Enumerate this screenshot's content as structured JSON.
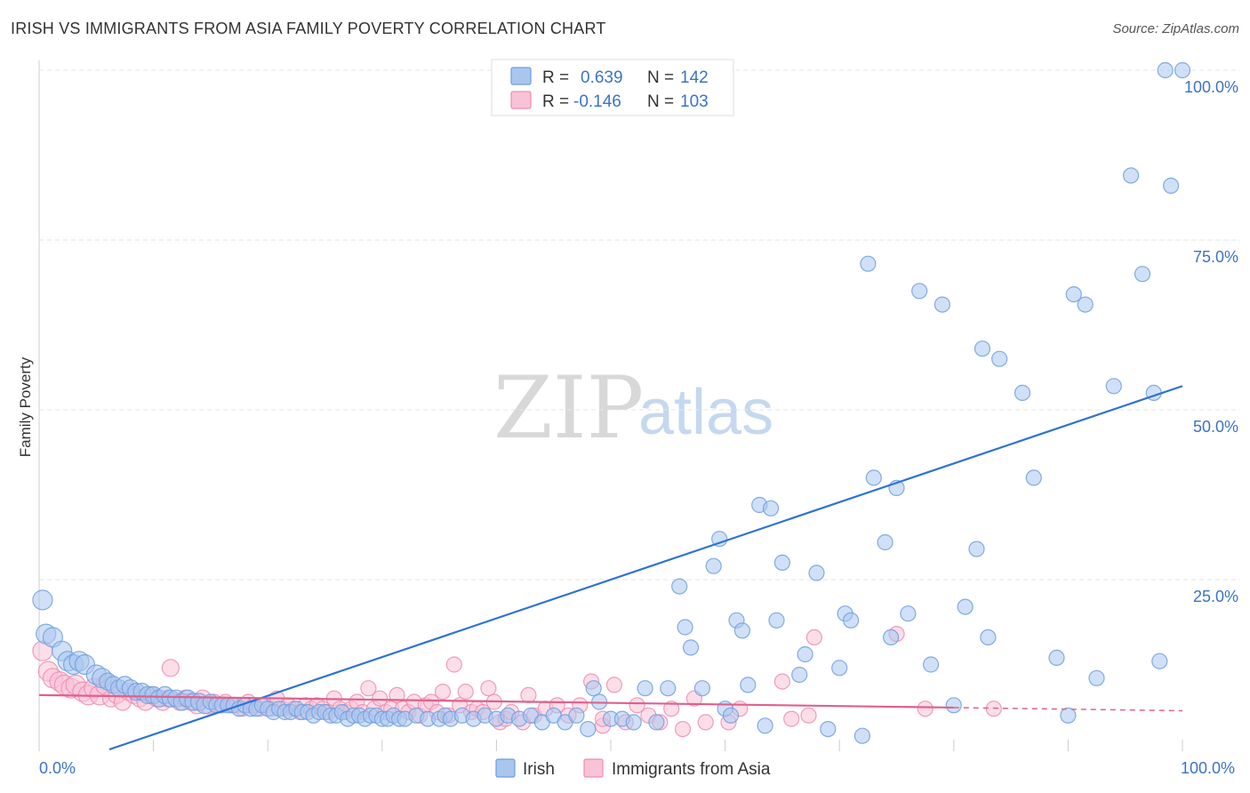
{
  "title": "IRISH VS IMMIGRANTS FROM ASIA FAMILY POVERTY CORRELATION CHART",
  "source": "Source: ZipAtlas.com",
  "watermark": {
    "zip": "ZIP",
    "atlas": "atlas"
  },
  "colors": {
    "irish": "#6f9fe0",
    "irish_fill": "#a9c6ef",
    "irish_line": "#2d72d6",
    "asia": "#f08cb0",
    "asia_fill": "#f8c3d6",
    "asia_line": "#e0608e",
    "grid": "#e6e6e6",
    "tick_text": "#3b73c7"
  },
  "legend_top": {
    "rows": [
      {
        "r_label": "R =",
        "r_value": "0.639",
        "n_label": "N =",
        "n_value": "142"
      },
      {
        "r_label": "R =",
        "r_value": "-0.146",
        "n_label": "N =",
        "n_value": "103"
      }
    ]
  },
  "chart_data": {
    "type": "scatter",
    "title": "IRISH VS IMMIGRANTS FROM ASIA FAMILY POVERTY CORRELATION CHART",
    "xlabel": "",
    "ylabel": "Family Poverty",
    "xlim": [
      0,
      100
    ],
    "ylim": [
      0,
      100
    ],
    "x_tick_labels": [
      "0.0%",
      "100.0%"
    ],
    "y_tick_labels": [
      "25.0%",
      "50.0%",
      "75.0%",
      "100.0%"
    ],
    "y_ticks": [
      25,
      50,
      75,
      100
    ],
    "grid": true,
    "legend_position": "bottom-center",
    "series": [
      {
        "name": "Irish",
        "r": 0.639,
        "n": 142,
        "trend": {
          "x0": 0,
          "y0": -3.5,
          "x1": 100,
          "y1": 53.5
        },
        "points": [
          [
            0.3,
            22
          ],
          [
            0.6,
            17
          ],
          [
            1.2,
            16.5
          ],
          [
            2.0,
            14.5
          ],
          [
            2.5,
            13
          ],
          [
            3.0,
            12.5
          ],
          [
            3.5,
            13
          ],
          [
            4.0,
            12.5
          ],
          [
            5.0,
            11
          ],
          [
            5.5,
            10.5
          ],
          [
            6.0,
            10
          ],
          [
            6.5,
            9.5
          ],
          [
            7.0,
            9
          ],
          [
            7.5,
            9.5
          ],
          [
            8.0,
            9
          ],
          [
            8.5,
            8.5
          ],
          [
            9.0,
            8.5
          ],
          [
            9.5,
            8
          ],
          [
            10.0,
            8
          ],
          [
            10.5,
            7.5
          ],
          [
            11.0,
            8
          ],
          [
            11.5,
            7.5
          ],
          [
            12.0,
            7.5
          ],
          [
            12.5,
            7
          ],
          [
            13.0,
            7.5
          ],
          [
            13.5,
            7
          ],
          [
            14.0,
            7
          ],
          [
            14.5,
            6.5
          ],
          [
            15.0,
            7
          ],
          [
            15.5,
            6.5
          ],
          [
            16.0,
            6.5
          ],
          [
            16.5,
            6.5
          ],
          [
            17.0,
            6.5
          ],
          [
            17.5,
            6
          ],
          [
            18.0,
            6.5
          ],
          [
            18.5,
            6
          ],
          [
            19.0,
            6
          ],
          [
            19.5,
            6.5
          ],
          [
            20.0,
            6
          ],
          [
            20.5,
            5.5
          ],
          [
            21.0,
            6
          ],
          [
            21.5,
            5.5
          ],
          [
            22.0,
            5.5
          ],
          [
            22.5,
            6
          ],
          [
            23.0,
            5.5
          ],
          [
            23.5,
            5.5
          ],
          [
            24.0,
            5
          ],
          [
            24.5,
            5.5
          ],
          [
            25.0,
            5.5
          ],
          [
            25.5,
            5
          ],
          [
            26.0,
            5
          ],
          [
            26.5,
            5.5
          ],
          [
            27.0,
            4.5
          ],
          [
            27.5,
            5
          ],
          [
            28.0,
            5
          ],
          [
            28.5,
            4.5
          ],
          [
            29.0,
            5
          ],
          [
            29.5,
            5
          ],
          [
            30.0,
            4.5
          ],
          [
            30.5,
            4.5
          ],
          [
            31.0,
            5
          ],
          [
            31.5,
            4.5
          ],
          [
            32.0,
            4.5
          ],
          [
            33.0,
            5
          ],
          [
            34.0,
            4.5
          ],
          [
            35.0,
            4.5
          ],
          [
            35.5,
            5
          ],
          [
            36.0,
            4.5
          ],
          [
            37.0,
            5
          ],
          [
            38.0,
            4.5
          ],
          [
            39.0,
            5
          ],
          [
            40.0,
            4.5
          ],
          [
            41.0,
            5
          ],
          [
            42.0,
            4.5
          ],
          [
            43.0,
            5
          ],
          [
            44.0,
            4
          ],
          [
            45.0,
            5
          ],
          [
            46.0,
            4
          ],
          [
            47.0,
            5
          ],
          [
            48.0,
            3
          ],
          [
            48.5,
            9
          ],
          [
            49.0,
            7
          ],
          [
            50.0,
            4.5
          ],
          [
            51.0,
            4.5
          ],
          [
            52.0,
            4
          ],
          [
            53.0,
            9
          ],
          [
            54.0,
            4
          ],
          [
            55.0,
            9
          ],
          [
            56.0,
            24
          ],
          [
            56.5,
            18
          ],
          [
            57.0,
            15
          ],
          [
            58.0,
            9
          ],
          [
            59.0,
            27
          ],
          [
            59.5,
            31
          ],
          [
            60.0,
            6
          ],
          [
            60.5,
            5
          ],
          [
            61.0,
            19
          ],
          [
            61.5,
            17.5
          ],
          [
            62.0,
            9.5
          ],
          [
            63.0,
            36
          ],
          [
            63.5,
            3.5
          ],
          [
            64.0,
            35.5
          ],
          [
            64.5,
            19
          ],
          [
            65.0,
            27.5
          ],
          [
            66.5,
            11
          ],
          [
            67.0,
            14
          ],
          [
            68.0,
            26
          ],
          [
            69.0,
            3
          ],
          [
            70.0,
            12
          ],
          [
            70.5,
            20
          ],
          [
            71.0,
            19
          ],
          [
            72.0,
            2
          ],
          [
            72.5,
            71.5
          ],
          [
            73.0,
            40
          ],
          [
            74.0,
            30.5
          ],
          [
            74.5,
            16.5
          ],
          [
            75.0,
            38.5
          ],
          [
            76.0,
            20
          ],
          [
            77.0,
            67.5
          ],
          [
            78.0,
            12.5
          ],
          [
            79.0,
            65.5
          ],
          [
            80.0,
            6.5
          ],
          [
            81.0,
            21
          ],
          [
            82.0,
            29.5
          ],
          [
            82.5,
            59
          ],
          [
            83.0,
            16.5
          ],
          [
            84.0,
            57.5
          ],
          [
            86.0,
            52.5
          ],
          [
            87.0,
            40
          ],
          [
            89.0,
            13.5
          ],
          [
            90.0,
            5
          ],
          [
            90.5,
            67
          ],
          [
            91.5,
            65.5
          ],
          [
            92.5,
            10.5
          ],
          [
            94.0,
            53.5
          ],
          [
            95.5,
            84.5
          ],
          [
            96.5,
            70
          ],
          [
            97.5,
            52.5
          ],
          [
            98.0,
            13
          ],
          [
            98.5,
            100
          ],
          [
            99.0,
            83
          ],
          [
            100.0,
            100
          ]
        ]
      },
      {
        "name": "Immigrants from Asia",
        "r": -0.146,
        "n": 103,
        "trend": {
          "x0": 0,
          "y0": 8,
          "x1": 100,
          "y1": 5.7
        },
        "points": [
          [
            0.3,
            14.5
          ],
          [
            0.8,
            11.5
          ],
          [
            1.2,
            10.5
          ],
          [
            1.8,
            10
          ],
          [
            2.2,
            9.5
          ],
          [
            2.8,
            9
          ],
          [
            3.2,
            9.5
          ],
          [
            3.8,
            8.5
          ],
          [
            4.3,
            8
          ],
          [
            4.8,
            9
          ],
          [
            5.3,
            8
          ],
          [
            5.8,
            9.5
          ],
          [
            6.3,
            7.5
          ],
          [
            6.8,
            8
          ],
          [
            7.3,
            7
          ],
          [
            7.8,
            8.5
          ],
          [
            8.3,
            8
          ],
          [
            8.8,
            7.5
          ],
          [
            9.3,
            7
          ],
          [
            9.8,
            8
          ],
          [
            10.3,
            7.5
          ],
          [
            10.8,
            7
          ],
          [
            11.3,
            7.5
          ],
          [
            11.5,
            12
          ],
          [
            12.3,
            7
          ],
          [
            12.8,
            7.5
          ],
          [
            13.3,
            7
          ],
          [
            13.8,
            6.5
          ],
          [
            14.3,
            7.5
          ],
          [
            14.8,
            6.5
          ],
          [
            15.3,
            7
          ],
          [
            15.8,
            6.5
          ],
          [
            16.3,
            7
          ],
          [
            16.8,
            6.5
          ],
          [
            17.3,
            6.5
          ],
          [
            17.8,
            6
          ],
          [
            18.3,
            7
          ],
          [
            18.8,
            6.5
          ],
          [
            19.3,
            6
          ],
          [
            19.8,
            6.5
          ],
          [
            20.3,
            6
          ],
          [
            20.8,
            7.5
          ],
          [
            21.3,
            6
          ],
          [
            21.8,
            6.5
          ],
          [
            22.3,
            6
          ],
          [
            22.8,
            5.5
          ],
          [
            23.3,
            6.5
          ],
          [
            23.8,
            6
          ],
          [
            24.3,
            6.5
          ],
          [
            24.8,
            6
          ],
          [
            25.3,
            5.5
          ],
          [
            25.8,
            7.5
          ],
          [
            26.3,
            6
          ],
          [
            26.8,
            5.5
          ],
          [
            27.3,
            6
          ],
          [
            27.8,
            7
          ],
          [
            28.3,
            5.5
          ],
          [
            28.8,
            9
          ],
          [
            29.3,
            6
          ],
          [
            29.8,
            7.5
          ],
          [
            30.3,
            5.5
          ],
          [
            30.8,
            6
          ],
          [
            31.3,
            8
          ],
          [
            31.8,
            6
          ],
          [
            32.3,
            5.5
          ],
          [
            32.8,
            7
          ],
          [
            33.3,
            5
          ],
          [
            33.8,
            6.5
          ],
          [
            34.3,
            7
          ],
          [
            34.8,
            5.5
          ],
          [
            35.3,
            8.5
          ],
          [
            35.8,
            5
          ],
          [
            36.3,
            12.5
          ],
          [
            36.8,
            6.5
          ],
          [
            37.3,
            8.5
          ],
          [
            37.8,
            5.5
          ],
          [
            38.3,
            6
          ],
          [
            38.8,
            5.5
          ],
          [
            39.3,
            9
          ],
          [
            39.8,
            7
          ],
          [
            40.3,
            4
          ],
          [
            40.8,
            4.5
          ],
          [
            41.3,
            5.5
          ],
          [
            42.3,
            4
          ],
          [
            42.8,
            8
          ],
          [
            43.3,
            5
          ],
          [
            44.3,
            6
          ],
          [
            45.3,
            6.5
          ],
          [
            46.3,
            5
          ],
          [
            47.3,
            6.5
          ],
          [
            48.3,
            10
          ],
          [
            49.3,
            3.5
          ],
          [
            50.3,
            9.5
          ],
          [
            51.3,
            4
          ],
          [
            52.3,
            6.5
          ],
          [
            53.3,
            5
          ],
          [
            54.3,
            4
          ],
          [
            55.3,
            6
          ],
          [
            56.3,
            3
          ],
          [
            57.3,
            7.5
          ],
          [
            58.3,
            4
          ],
          [
            60.3,
            4
          ],
          [
            61.3,
            6
          ]
        ],
        "points_extra": [
          [
            49.3,
            4.5
          ],
          [
            65.0,
            10
          ],
          [
            65.8,
            4.5
          ],
          [
            67.3,
            5
          ],
          [
            67.8,
            16.5
          ],
          [
            75.0,
            17
          ],
          [
            77.5,
            6
          ],
          [
            83.5,
            6
          ]
        ]
      }
    ],
    "legend": [
      "Irish",
      "Immigrants from Asia"
    ]
  }
}
